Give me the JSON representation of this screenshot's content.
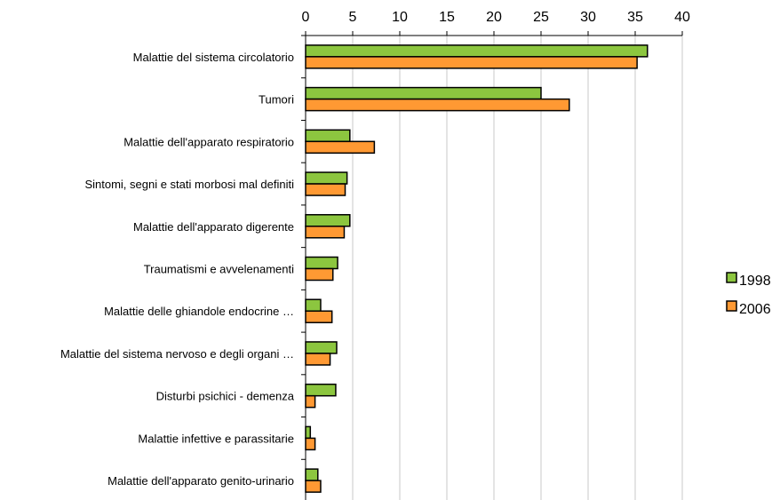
{
  "chart_data": {
    "type": "bar",
    "orientation": "horizontal",
    "xlim": [
      0,
      40
    ],
    "x_ticks": [
      0,
      5,
      10,
      15,
      20,
      25,
      30,
      35,
      40
    ],
    "grid": "vertical",
    "legend_position": "right",
    "categories": [
      "Malattie del sistema circolatorio",
      "Tumori",
      "Malattie dell'apparato respiratorio",
      "Sintomi, segni e stati morbosi mal definiti",
      "Malattie dell'apparato digerente",
      "Traumatismi e avvelenamenti",
      "Malattie delle ghiandole endocrine …",
      "Malattie del sistema nervoso e degli organi …",
      "Disturbi psichici - demenza",
      "Malattie infettive e parassitarie",
      "Malattie dell'apparato genito-urinario"
    ],
    "series": [
      {
        "name": "1998",
        "color": "#8cc63f",
        "values": [
          36.3,
          25.0,
          4.7,
          4.4,
          4.7,
          3.4,
          1.6,
          3.3,
          3.2,
          0.5,
          1.3
        ]
      },
      {
        "name": "2006",
        "color": "#ff9933",
        "values": [
          35.2,
          28.0,
          7.3,
          4.2,
          4.1,
          2.9,
          2.8,
          2.6,
          1.0,
          1.0,
          1.6
        ]
      }
    ]
  }
}
